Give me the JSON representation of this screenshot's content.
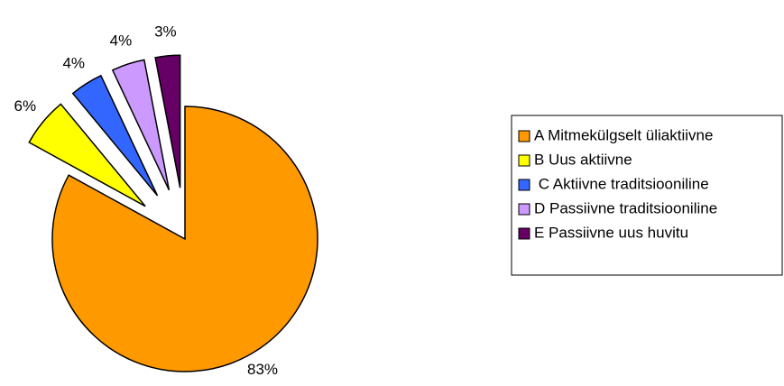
{
  "chart_data": {
    "type": "pie",
    "categories": [
      "A Mitmekülgselt üliaktiivne",
      "B Uus aktiivne",
      " C Aktiivne traditsiooniline",
      "D Passiivne traditsiooniline",
      "E Passiivne uus huvitu"
    ],
    "values": [
      83,
      6,
      4,
      4,
      3
    ],
    "value_labels": [
      "83%",
      "6%",
      "4%",
      "4%",
      "3%"
    ],
    "colors": [
      "#ff9900",
      "#ffff00",
      "#3366ff",
      "#cc99ff",
      "#660066"
    ],
    "legend": "right"
  }
}
